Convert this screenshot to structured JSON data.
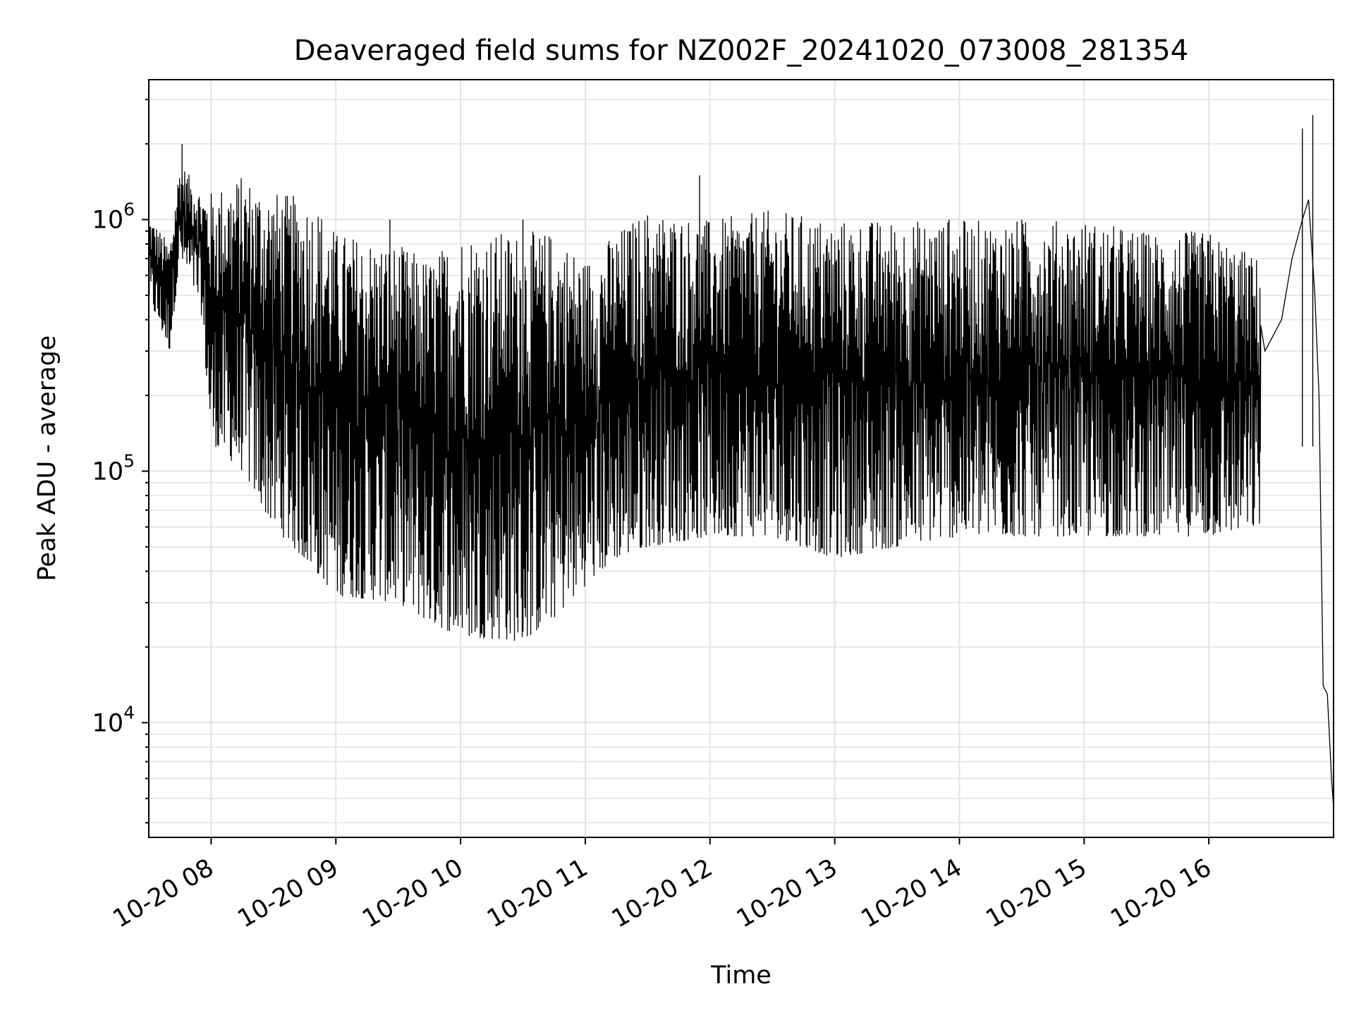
{
  "chart_data": {
    "type": "line",
    "title": "Deaveraged field sums for NZ002F_20241020_073008_281354",
    "xlabel": "Time",
    "ylabel": "Peak ADU - average",
    "yscale": "log",
    "ylim": [
      3500,
      3600000
    ],
    "xlim": [
      "2024-10-20 07:30",
      "2024-10-20 17:00"
    ],
    "grid": true,
    "x_tick_labels": [
      "10-20 08",
      "10-20 09",
      "10-20 10",
      "10-20 11",
      "10-20 12",
      "10-20 13",
      "10-20 14",
      "10-20 15",
      "10-20 16"
    ],
    "y_tick_labels": [
      {
        "base": "10",
        "exp": "4",
        "value": 10000
      },
      {
        "base": "10",
        "exp": "5",
        "value": 100000
      },
      {
        "base": "10",
        "exp": "6",
        "value": 1000000
      }
    ],
    "series": [
      {
        "color": "#000000",
        "envelope": [
          {
            "x": "2024-10-20 07:30",
            "low": 480000,
            "high": 1050000
          },
          {
            "x": "2024-10-20 07:40",
            "low": 300000,
            "high": 800000
          },
          {
            "x": "2024-10-20 07:45",
            "low": 700000,
            "high": 1700000
          },
          {
            "x": "2024-10-20 07:55",
            "low": 450000,
            "high": 1300000
          },
          {
            "x": "2024-10-20 08:00",
            "low": 130000,
            "high": 1300000
          },
          {
            "x": "2024-10-20 08:15",
            "low": 100000,
            "high": 1500000
          },
          {
            "x": "2024-10-20 08:30",
            "low": 60000,
            "high": 1300000
          },
          {
            "x": "2024-10-20 08:50",
            "low": 40000,
            "high": 1200000
          },
          {
            "x": "2024-10-20 09:00",
            "low": 32000,
            "high": 900000
          },
          {
            "x": "2024-10-20 09:30",
            "low": 30000,
            "high": 800000
          },
          {
            "x": "2024-10-20 09:45",
            "low": 25000,
            "high": 700000
          },
          {
            "x": "2024-10-20 10:00",
            "low": 22000,
            "high": 900000
          },
          {
            "x": "2024-10-20 10:30",
            "low": 21000,
            "high": 900000
          },
          {
            "x": "2024-10-20 10:45",
            "low": 26000,
            "high": 900000
          },
          {
            "x": "2024-10-20 11:00",
            "low": 35000,
            "high": 700000
          },
          {
            "x": "2024-10-20 11:15",
            "low": 45000,
            "high": 900000
          },
          {
            "x": "2024-10-20 11:30",
            "low": 50000,
            "high": 1100000
          },
          {
            "x": "2024-10-20 12:00",
            "low": 55000,
            "high": 1000000
          },
          {
            "x": "2024-10-20 12:30",
            "low": 55000,
            "high": 1100000
          },
          {
            "x": "2024-10-20 13:00",
            "low": 45000,
            "high": 1000000
          },
          {
            "x": "2024-10-20 13:30",
            "low": 50000,
            "high": 1000000
          },
          {
            "x": "2024-10-20 14:00",
            "low": 55000,
            "high": 1000000
          },
          {
            "x": "2024-10-20 14:30",
            "low": 55000,
            "high": 1000000
          },
          {
            "x": "2024-10-20 15:00",
            "low": 55000,
            "high": 1000000
          },
          {
            "x": "2024-10-20 15:30",
            "low": 55000,
            "high": 900000
          },
          {
            "x": "2024-10-20 16:00",
            "low": 55000,
            "high": 900000
          },
          {
            "x": "2024-10-20 16:25",
            "low": 60000,
            "high": 700000
          }
        ],
        "tail": [
          {
            "x": "2024-10-20 16:27",
            "y": 300000
          },
          {
            "x": "2024-10-20 16:35",
            "y": 400000
          },
          {
            "x": "2024-10-20 16:40",
            "y": 700000
          },
          {
            "x": "2024-10-20 16:45",
            "y": 1000000
          },
          {
            "x": "2024-10-20 16:48",
            "y": 1200000
          },
          {
            "x": "2024-10-20 16:51",
            "y": 500000
          },
          {
            "x": "2024-10-20 16:53",
            "y": 200000
          },
          {
            "x": "2024-10-20 16:55",
            "y": 14000
          },
          {
            "x": "2024-10-20 16:57",
            "y": 13000
          },
          {
            "x": "2024-10-20 16:59",
            "y": 6000
          },
          {
            "x": "2024-10-20 17:00",
            "y": 4600
          }
        ],
        "spikes": [
          {
            "x": "2024-10-20 07:46",
            "y": 2000000
          },
          {
            "x": "2024-10-20 09:26",
            "y": 1000000
          },
          {
            "x": "2024-10-20 10:30",
            "y": 1000000
          },
          {
            "x": "2024-10-20 11:55",
            "y": 1500000
          },
          {
            "x": "2024-10-20 13:55",
            "y": 1000000
          },
          {
            "x": "2024-10-20 14:30",
            "y": 1000000
          },
          {
            "x": "2024-10-20 16:45",
            "y": 2300000
          },
          {
            "x": "2024-10-20 16:50",
            "y": 2600000
          }
        ]
      }
    ]
  }
}
